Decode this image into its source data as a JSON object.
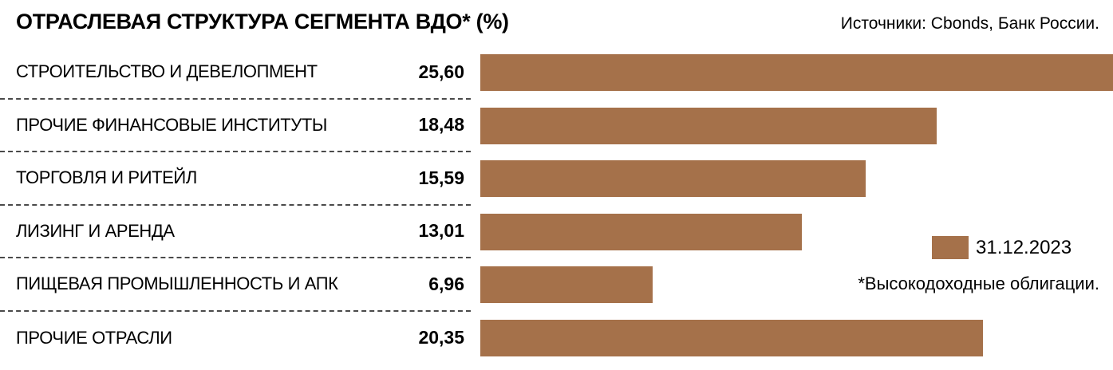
{
  "chart_data": {
    "type": "bar",
    "orientation": "horizontal",
    "title": "ОТРАСЛЕВАЯ СТРУКТУРА СЕГМЕНТА ВДО* (%)",
    "source": "Источники: Cbonds, Банк России.",
    "categories": [
      "СТРОИТЕЛЬСТВО И ДЕВЕЛОПМЕНТ",
      "ПРОЧИЕ ФИНАНСОВЫЕ ИНСТИТУТЫ",
      "ТОРГОВЛЯ И РИТЕЙЛ",
      "ЛИЗИНГ И АРЕНДА",
      "ПИЩЕВАЯ ПРОМЫШЛЕННОСТЬ И АПК",
      "ПРОЧИЕ ОТРАСЛИ"
    ],
    "values": [
      25.6,
      18.48,
      15.59,
      13.01,
      6.96,
      20.35
    ],
    "value_labels": [
      "25,60",
      "18,48",
      "15,59",
      "13,01",
      "6,96",
      "20,35"
    ],
    "xlim": [
      0,
      25.6
    ],
    "bar_color": "#a5714a",
    "grid": "dashed-row-separators-left-only",
    "legend_position": "right",
    "legend": {
      "label": "31.12.2023",
      "color": "#a5714a"
    },
    "footnote": "*Высокодоходные облигации."
  }
}
